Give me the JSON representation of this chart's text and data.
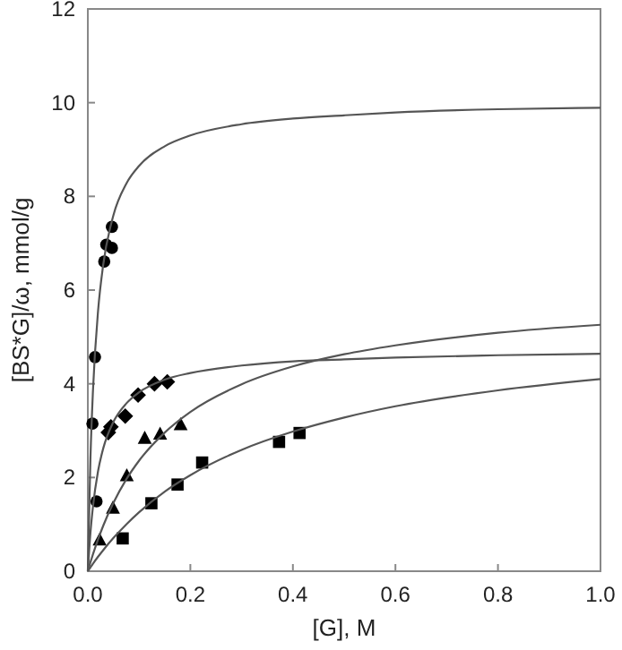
{
  "chart_data": {
    "type": "scatter",
    "xlabel": "[G], M",
    "ylabel": "[BS*G]/ω, mmol/g",
    "xlim": [
      0,
      1
    ],
    "xticks": [
      {
        "value": 0,
        "label": "0.0"
      },
      0.2,
      0.4,
      0.6,
      0.8,
      {
        "value": 1,
        "label": "1.0"
      }
    ],
    "ylim": [
      0,
      12
    ],
    "yticks": [
      0,
      2,
      4,
      6,
      8,
      10,
      12
    ],
    "grid": false,
    "series": [
      {
        "marker": "circle",
        "color": "#000000",
        "x": [
          0.009,
          0.017,
          0.014,
          0.032,
          0.036,
          0.047,
          0.047
        ],
        "values": [
          3.15,
          1.49,
          4.57,
          6.61,
          6.97,
          6.9,
          7.35
        ]
      },
      {
        "marker": "diamond",
        "color": "#000000",
        "x": [
          0.04,
          0.045,
          0.073,
          0.098,
          0.13,
          0.155
        ],
        "values": [
          2.96,
          3.08,
          3.31,
          3.76,
          4.0,
          4.04
        ]
      },
      {
        "marker": "triangle",
        "color": "#000000",
        "x": [
          0.023,
          0.049,
          0.076,
          0.111,
          0.141,
          0.181
        ],
        "values": [
          0.66,
          1.34,
          2.03,
          2.83,
          2.92,
          3.12
        ]
      },
      {
        "marker": "square",
        "color": "#000000",
        "x": [
          0.068,
          0.124,
          0.175,
          0.223,
          0.373,
          0.413
        ],
        "values": [
          0.7,
          1.45,
          1.85,
          2.32,
          2.76,
          2.95
        ]
      },
      {
        "type": "line",
        "marker": "none",
        "color": "#555555",
        "x": [
          0,
          0.005,
          0.01,
          0.02,
          0.03,
          0.05,
          0.075,
          0.1,
          0.15,
          0.2,
          0.3,
          0.4,
          0.5,
          0.6,
          0.8,
          1.0
        ],
        "values": [
          0,
          2.38,
          3.85,
          5.56,
          6.54,
          7.6,
          8.27,
          8.65,
          9.07,
          9.3,
          9.54,
          9.66,
          9.73,
          9.79,
          9.86,
          9.89
        ]
      },
      {
        "type": "line",
        "marker": "none",
        "color": "#555555",
        "x": [
          0,
          0.005,
          0.01,
          0.02,
          0.03,
          0.05,
          0.075,
          0.1,
          0.15,
          0.2,
          0.3,
          0.4,
          0.5,
          0.6,
          0.8,
          1.0
        ],
        "values": [
          0,
          0.81,
          1.38,
          2.14,
          2.62,
          3.19,
          3.58,
          3.82,
          4.09,
          4.23,
          4.39,
          4.48,
          4.52,
          4.56,
          4.61,
          4.64
        ]
      },
      {
        "type": "line",
        "marker": "none",
        "color": "#555555",
        "x": [
          0,
          0.005,
          0.01,
          0.02,
          0.03,
          0.05,
          0.075,
          0.1,
          0.15,
          0.2,
          0.3,
          0.4,
          0.5,
          0.6,
          0.8,
          1.0
        ],
        "values": [
          0,
          0.19,
          0.36,
          0.68,
          0.97,
          1.46,
          1.96,
          2.36,
          2.96,
          3.4,
          3.99,
          4.37,
          4.63,
          4.82,
          5.09,
          5.26
        ]
      },
      {
        "type": "line",
        "marker": "none",
        "color": "#555555",
        "x": [
          0,
          0.005,
          0.01,
          0.02,
          0.03,
          0.05,
          0.075,
          0.1,
          0.15,
          0.2,
          0.3,
          0.4,
          0.5,
          0.6,
          0.8,
          1.0
        ],
        "values": [
          0,
          0.08,
          0.16,
          0.31,
          0.45,
          0.71,
          1.0,
          1.26,
          1.7,
          2.05,
          2.59,
          2.98,
          3.28,
          3.52,
          3.86,
          4.1
        ]
      }
    ]
  }
}
